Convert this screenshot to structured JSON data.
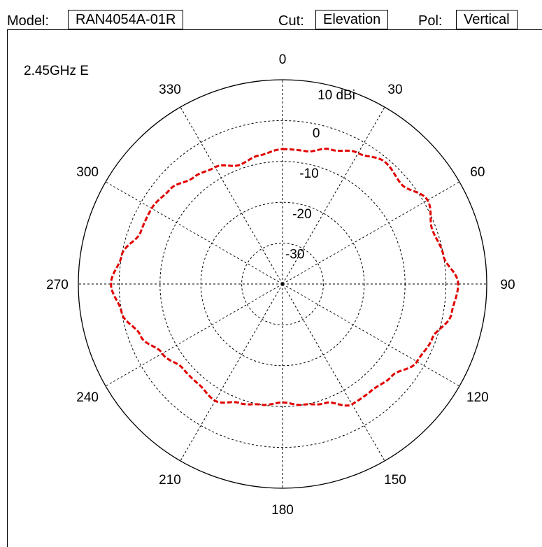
{
  "header": {
    "model_label": "Model:",
    "model_value": "RAN4054A-01R",
    "cut_label": "Cut:",
    "cut_value": "Elevation",
    "pol_label": "Pol:",
    "pol_value": "Vertical"
  },
  "chart_data": {
    "type": "line",
    "polar": true,
    "title": "2.45GHz E",
    "radial_unit_label": "10 dBi",
    "radial_ticks": [
      "0",
      "-10",
      "-20",
      "-30"
    ],
    "radial_range": [
      -40,
      10
    ],
    "angle_labels": [
      "0",
      "30",
      "60",
      "90",
      "120",
      "150",
      "180",
      "210",
      "240",
      "270",
      "300",
      "330"
    ],
    "grid": true,
    "colors": {
      "trace": "#e00000",
      "grid": "#000000"
    },
    "series": [
      {
        "angles": [
          0,
          10,
          20,
          30,
          40,
          50,
          60,
          70,
          80,
          90,
          100,
          110,
          120,
          130,
          140,
          150,
          160,
          170,
          180,
          190,
          200,
          210,
          220,
          230,
          240,
          250,
          260,
          270,
          280,
          290,
          300,
          310,
          320,
          330,
          340,
          350
        ],
        "gain_dbi": [
          -7,
          -7,
          -5,
          -3,
          -1,
          -2,
          1,
          -1,
          0,
          3,
          2,
          -1,
          -2,
          -5,
          -6,
          -6,
          -9,
          -10,
          -11,
          -10,
          -9,
          -7,
          -8,
          -8,
          -6,
          -3,
          0,
          2,
          0,
          -3,
          -3,
          -4,
          -6,
          -7,
          -9,
          -8
        ]
      }
    ]
  }
}
